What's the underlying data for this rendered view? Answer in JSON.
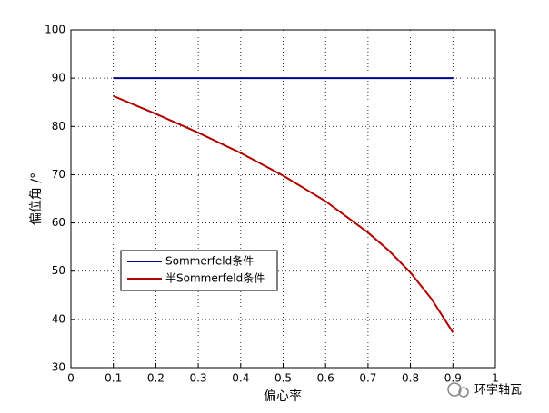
{
  "chart_data": {
    "type": "line",
    "xlabel": "偏心率",
    "ylabel": "偏位角 /°",
    "x": [
      0.1,
      0.2,
      0.3,
      0.4,
      0.5,
      0.6,
      0.7,
      0.75,
      0.8,
      0.85,
      0.9
    ],
    "series": [
      {
        "name": "Sommerfeld条件",
        "color": "#00008b",
        "values": [
          90,
          90,
          90,
          90,
          90,
          90,
          90,
          90,
          90,
          90,
          90
        ]
      },
      {
        "name": "半Sommerfeld条件",
        "color": "#b20000",
        "values": [
          86.3,
          82.6,
          78.7,
          74.5,
          69.8,
          64.5,
          58.0,
          54.2,
          49.7,
          44.2,
          37.3
        ]
      }
    ],
    "xlim": [
      0,
      1
    ],
    "ylim": [
      30,
      100
    ],
    "xticks": [
      0,
      0.1,
      0.2,
      0.3,
      0.4,
      0.5,
      0.6,
      0.7,
      0.8,
      0.9,
      1
    ],
    "yticks": [
      30,
      40,
      50,
      60,
      70,
      80,
      90,
      100
    ],
    "grid": true,
    "legend": "lower left",
    "watermark": "环宇轴瓦"
  }
}
